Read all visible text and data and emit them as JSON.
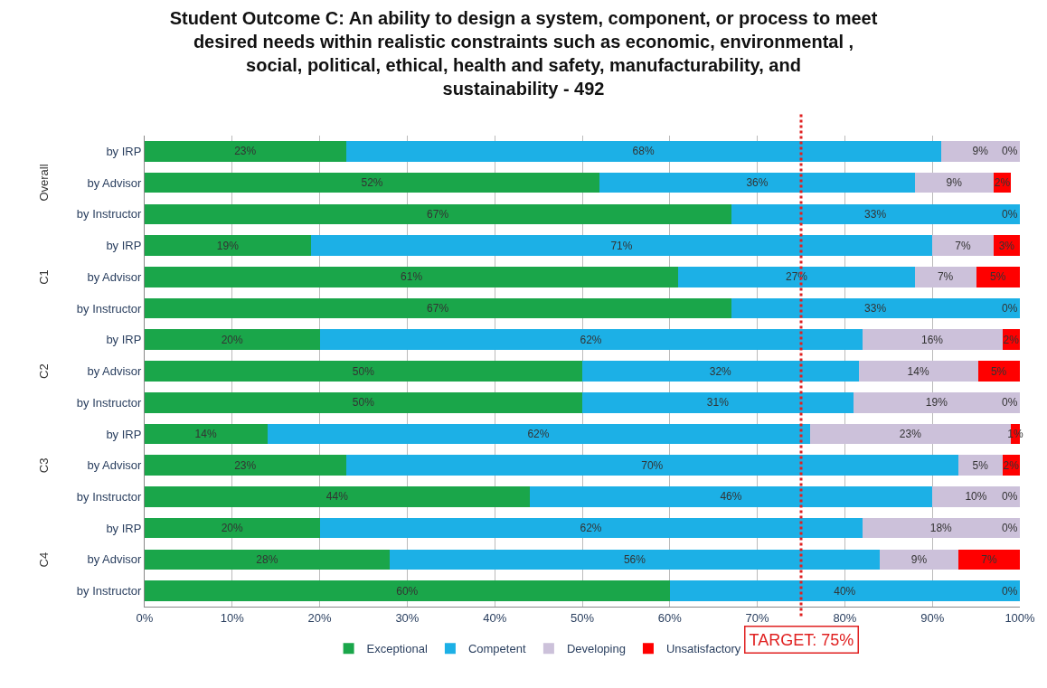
{
  "chart_data": {
    "type": "bar",
    "orientation": "horizontal",
    "stacked": true,
    "title": "Student Outcome C: An ability to design a system, component, or process to meet desired needs within realistic constraints such as economic, environmental , social, political, ethical, health and safety, manufacturability, and sustainability - 492",
    "categories": [
      "by IRP",
      "by Advisor",
      "by Instructor",
      "by IRP",
      "by Advisor",
      "by Instructor",
      "by IRP",
      "by Advisor",
      "by Instructor",
      "by IRP",
      "by Advisor",
      "by Instructor",
      "by IRP",
      "by Advisor",
      "by Instructor"
    ],
    "annotations": [
      "Overall",
      "C1",
      "C2",
      "C3",
      "C4"
    ],
    "series": [
      {
        "name": "Exceptional",
        "color": "#1aa64a",
        "values": [
          23,
          52,
          67,
          19,
          61,
          67,
          20,
          50,
          50,
          14,
          23,
          44,
          20,
          28,
          60
        ],
        "value_labels": [
          "23%",
          "52%",
          "67%",
          "19%",
          "61%",
          "67%",
          "20%",
          "50%",
          "50%",
          "14%",
          "23%",
          "44%",
          "20%",
          "28%",
          "60%"
        ]
      },
      {
        "name": "Competent",
        "color": "#1cb0e6",
        "values": [
          68,
          36,
          33,
          71,
          27,
          33,
          62,
          31.6,
          31,
          62,
          70,
          46,
          62,
          56,
          40
        ],
        "value_labels": [
          "68%",
          "36%",
          "33%",
          "71%",
          "27%",
          "33%",
          "62%",
          "32%",
          "31%",
          "62%",
          "70%",
          "46%",
          "62%",
          "56%",
          "40%"
        ]
      },
      {
        "name": "Developing",
        "color": "#ccc1da",
        "values": [
          9,
          9,
          0,
          7,
          7,
          0,
          16,
          13.6,
          19,
          23,
          5,
          10,
          18,
          9,
          0
        ],
        "value_labels": [
          "9%",
          "9%",
          null,
          "7%",
          "7%",
          null,
          "16%",
          "14%",
          "19%",
          "23%",
          "5%",
          "10%",
          "18%",
          "9%",
          null
        ]
      },
      {
        "name": "Unsatisfactory",
        "color": "#ff0000",
        "values": [
          0,
          2,
          0,
          3,
          5,
          0,
          2,
          4.8,
          0,
          1,
          2,
          0,
          0,
          7,
          0
        ],
        "value_labels": [
          "0%",
          "2%",
          "0%",
          "3%",
          "5%",
          "0%",
          "2%",
          "5%",
          "0%",
          "1%",
          "2%",
          "0%",
          "0%",
          "7%",
          "0%"
        ]
      }
    ],
    "xlim": [
      0,
      100
    ],
    "xticks": [
      {
        "value": 0,
        "label": "0%"
      },
      {
        "value": 10,
        "label": "10%"
      },
      {
        "value": 20,
        "label": "20%"
      },
      {
        "value": 30,
        "label": "30%"
      },
      {
        "value": 40,
        "label": "40%"
      },
      {
        "value": 50,
        "label": "50%"
      },
      {
        "value": 60,
        "label": "60%"
      },
      {
        "value": 70,
        "label": "70%"
      },
      {
        "value": 80,
        "label": "80%"
      },
      {
        "value": 90,
        "label": "90%"
      },
      {
        "value": 100,
        "label": "100%"
      }
    ],
    "ref_lines": [
      {
        "axis": "x",
        "value": 75,
        "label": "TARGET: 75%",
        "color": "#e02020",
        "line_style": "dotted"
      }
    ],
    "grid": "x",
    "legend": "bottom"
  }
}
